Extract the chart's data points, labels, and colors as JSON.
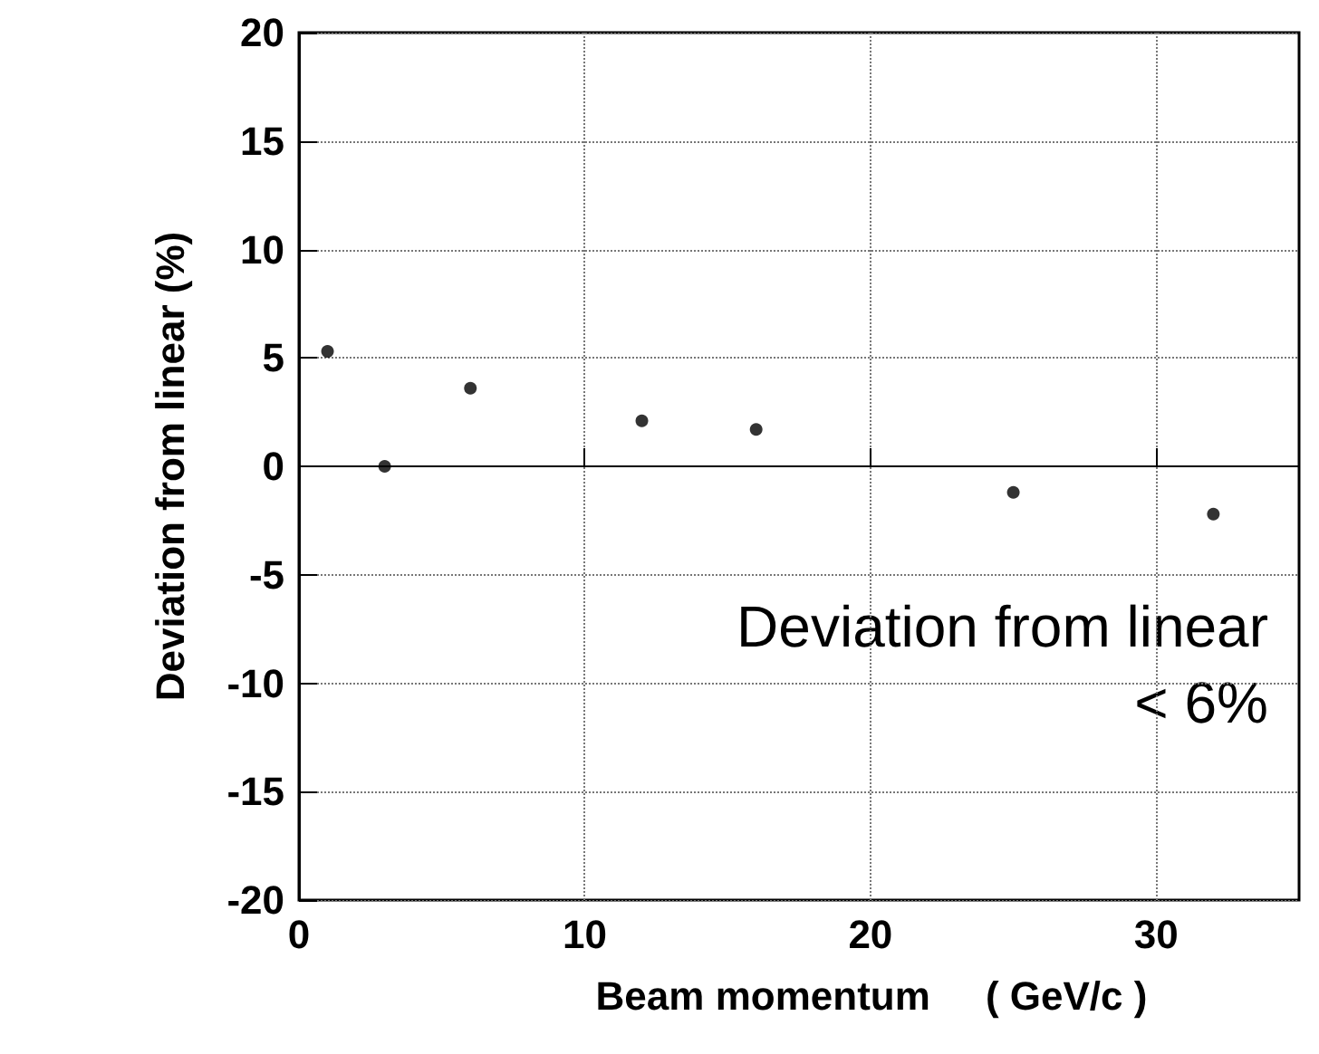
{
  "chart_data": {
    "type": "scatter",
    "xlabel": "Beam momentum     ( GeV/c )",
    "ylabel": "Deviation from linear (%)",
    "x": [
      1,
      3,
      6,
      12,
      16,
      25,
      32
    ],
    "values": [
      5.3,
      0,
      3.6,
      2.1,
      1.7,
      -1.2,
      -2.2
    ],
    "color": "#000000",
    "marker": "circle",
    "xlim": [
      0,
      35
    ],
    "xticks": [
      0,
      10,
      20,
      30
    ],
    "ylim": [
      -20,
      20
    ],
    "yticks": [
      -20,
      -15,
      -10,
      -5,
      0,
      5,
      10,
      15,
      20
    ],
    "grid": true,
    "annotations": [
      "Deviation from linear",
      "< 6%"
    ]
  }
}
